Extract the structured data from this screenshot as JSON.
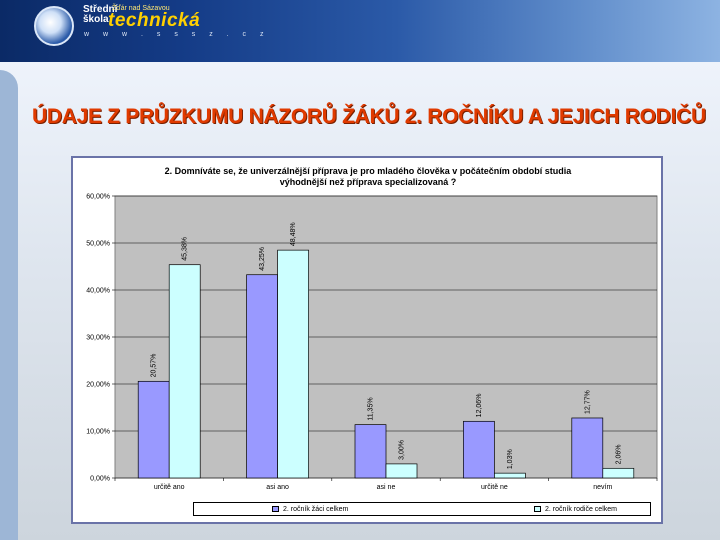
{
  "header": {
    "logo_line1": "Střední",
    "logo_line2": "škola",
    "logo_small": "Žďár nad Sázavou",
    "logo_big": "technická",
    "logo_web": "w w w . s s s z . c z"
  },
  "page_title": "ÚDAJE Z PRŮZKUMU NÁZORŮ ŽÁKŮ 2. ROČNÍKU A JEJICH RODIČŮ",
  "chart_data": {
    "type": "bar",
    "title_line1": "2. Domníváte se, že univerzálnější příprava je pro mladého člověka v počátečním období studia",
    "title_line2": "výhodnější než příprava specializovaná ?",
    "categories": [
      "určitě ano",
      "asi ano",
      "asi ne",
      "určitě ne",
      "nevím"
    ],
    "series": [
      {
        "name": "2. ročník žáci celkem",
        "color": "#9999ff",
        "values": [
          20.57,
          43.25,
          11.35,
          12.06,
          12.77
        ],
        "labels": [
          "20,57%",
          "43,25%",
          "11,35%",
          "12,06%",
          "12,77%"
        ]
      },
      {
        "name": "2. ročník rodiče celkem",
        "color": "#ccffff",
        "values": [
          45.38,
          48.48,
          3.0,
          1.03,
          2.06
        ],
        "labels": [
          "45,38%",
          "48,48%",
          "3,00%",
          "1,03%",
          "2,06%"
        ]
      }
    ],
    "ylim": [
      0,
      60
    ],
    "yticks": [
      "0,00%",
      "10,00%",
      "20,00%",
      "30,00%",
      "40,00%",
      "50,00%",
      "60,00%"
    ],
    "plot_bg": "#c0c0c0",
    "legend_position": "bottom"
  }
}
